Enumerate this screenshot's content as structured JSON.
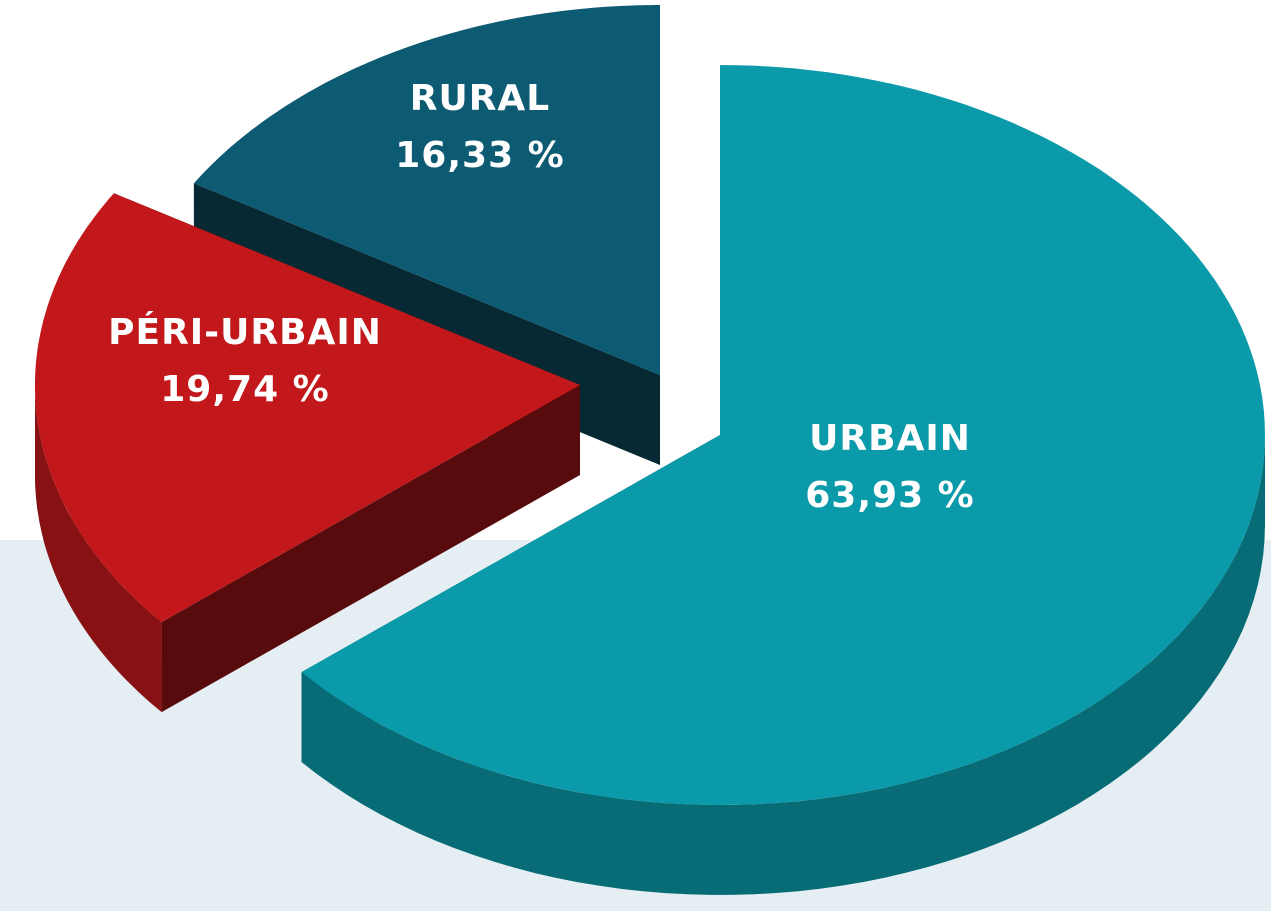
{
  "chart_data": {
    "type": "pie3d",
    "categories": [
      "URBAIN",
      "PÉRI-URBAIN",
      "RURAL"
    ],
    "values": [
      63.93,
      19.74,
      16.33
    ],
    "value_labels": [
      "63,93 %",
      "19,74 %",
      "16,33 %"
    ],
    "colors": [
      "#0a9aa9",
      "#c2181b",
      "#0d5a73"
    ]
  }
}
